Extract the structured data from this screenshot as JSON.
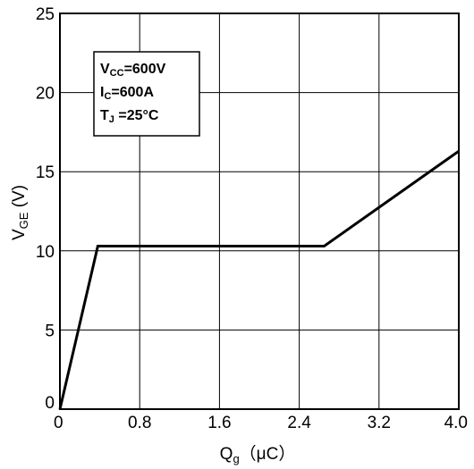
{
  "chart_data": {
    "type": "line",
    "xlabel": {
      "main": "Q",
      "sub": "g",
      "unit": "（μC）"
    },
    "ylabel": {
      "main": "V",
      "sub": "GE",
      "unit": " (V)"
    },
    "xlim": [
      0,
      4.0
    ],
    "ylim": [
      0,
      25
    ],
    "x_ticks": [
      0,
      0.8,
      1.6,
      2.4,
      3.2,
      4.0
    ],
    "x_tick_labels": [
      "0",
      "0.8",
      "1.6",
      "2.4",
      "3.2",
      "4.0"
    ],
    "y_ticks": [
      0,
      5,
      10,
      15,
      20,
      25
    ],
    "y_tick_labels": [
      "0",
      "5",
      "10",
      "15",
      "20",
      "25"
    ],
    "grid": true,
    "series": [
      {
        "x": [
          0,
          0.38,
          2.65,
          4.0
        ],
        "y": [
          0,
          10.3,
          10.3,
          16.3
        ]
      }
    ],
    "conditions": [
      {
        "main": "V",
        "sub": "CC",
        "value": "=600V"
      },
      {
        "main": "I",
        "sub": "C",
        "value": "=600A"
      },
      {
        "main": "T",
        "sub": "J",
        "value": " =25°C"
      }
    ]
  }
}
